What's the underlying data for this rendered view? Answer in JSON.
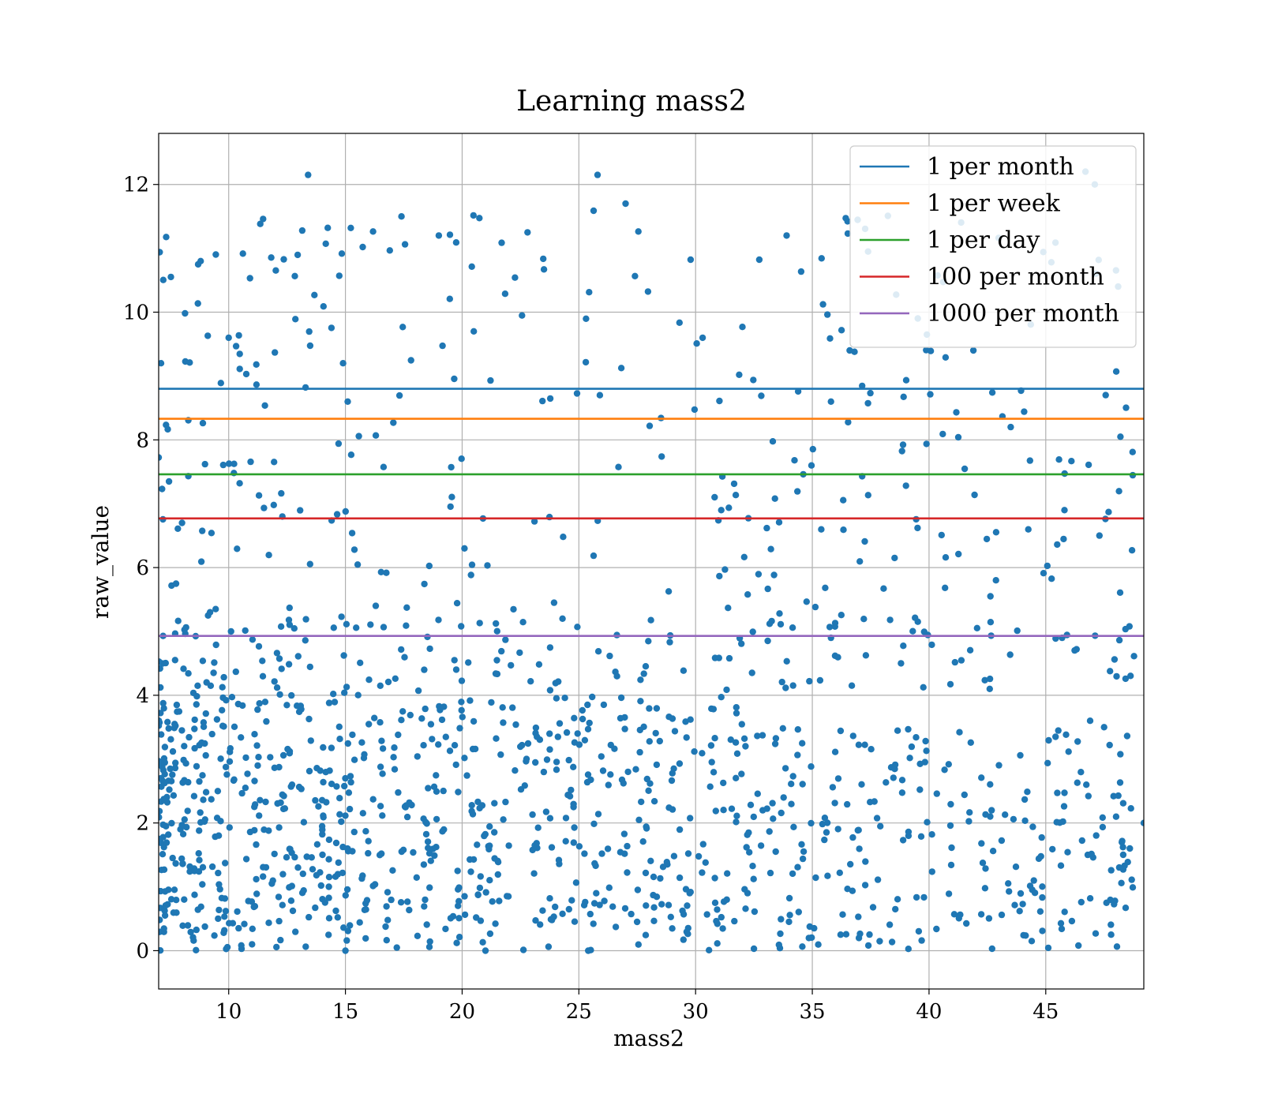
{
  "chart_data": {
    "type": "scatter",
    "title": "Learning mass2",
    "xlabel": "mass2",
    "ylabel": "raw_value",
    "xlim": [
      7.0,
      49.2
    ],
    "ylim": [
      -0.6,
      12.8
    ],
    "xticks": [
      10,
      15,
      20,
      25,
      30,
      35,
      40,
      45
    ],
    "yticks": [
      0,
      2,
      4,
      6,
      8,
      10,
      12
    ],
    "grid": true,
    "legend_position": "top-right",
    "scatter": {
      "color": "#1f77b4",
      "approx_point_count": 1500,
      "sample_points": [
        {
          "x": 7.1,
          "y": 9.2
        },
        {
          "x": 8.8,
          "y": 10.8
        },
        {
          "x": 13.4,
          "y": 12.15
        },
        {
          "x": 17.4,
          "y": 11.5
        },
        {
          "x": 19.0,
          "y": 11.2
        },
        {
          "x": 22.8,
          "y": 11.25
        },
        {
          "x": 25.8,
          "y": 12.15
        },
        {
          "x": 27.0,
          "y": 11.7
        },
        {
          "x": 33.9,
          "y": 11.2
        },
        {
          "x": 46.7,
          "y": 12.2
        },
        {
          "x": 47.1,
          "y": 12.0
        },
        {
          "x": 48.1,
          "y": 10.4
        },
        {
          "x": 10.0,
          "y": 9.6
        },
        {
          "x": 14.9,
          "y": 9.2
        },
        {
          "x": 20.5,
          "y": 9.7
        },
        {
          "x": 30.3,
          "y": 9.6
        },
        {
          "x": 36.6,
          "y": 9.4
        },
        {
          "x": 41.9,
          "y": 9.4
        },
        {
          "x": 48.2,
          "y": 8.05
        },
        {
          "x": 43.5,
          "y": 8.2
        },
        {
          "x": 35.8,
          "y": 8.6
        },
        {
          "x": 25.9,
          "y": 8.7
        },
        {
          "x": 15.1,
          "y": 8.6
        },
        {
          "x": 8.0,
          "y": 6.7
        },
        {
          "x": 12.3,
          "y": 6.8
        },
        {
          "x": 20.1,
          "y": 6.3
        },
        {
          "x": 31.1,
          "y": 6.9
        },
        {
          "x": 45.8,
          "y": 6.9
        },
        {
          "x": 47.3,
          "y": 6.5
        },
        {
          "x": 9.2,
          "y": 5.3
        },
        {
          "x": 16.3,
          "y": 5.4
        },
        {
          "x": 24.3,
          "y": 5.2
        },
        {
          "x": 35.8,
          "y": 4.9
        },
        {
          "x": 45.7,
          "y": 4.9
        },
        {
          "x": 10.1,
          "y": 5.0
        },
        {
          "x": 42.6,
          "y": 4.1
        },
        {
          "x": 38.8,
          "y": 4.5
        },
        {
          "x": 46.9,
          "y": 3.6
        },
        {
          "x": 47.5,
          "y": 3.5
        },
        {
          "x": 49.2,
          "y": 2.0
        },
        {
          "x": 48.6,
          "y": 1.6
        },
        {
          "x": 46.8,
          "y": 1.5
        },
        {
          "x": 47.6,
          "y": 0.75
        },
        {
          "x": 47.8,
          "y": 0.25
        },
        {
          "x": 46.4,
          "y": 0.08
        },
        {
          "x": 15.0,
          "y": 0.0
        },
        {
          "x": 21.0,
          "y": 0.0
        },
        {
          "x": 25.4,
          "y": 0.0
        },
        {
          "x": 32.5,
          "y": 0.03
        },
        {
          "x": 42.7,
          "y": 0.03
        },
        {
          "x": 44.4,
          "y": 0.15
        },
        {
          "x": 11.0,
          "y": 0.1
        }
      ]
    },
    "series": [
      {
        "name": "1 per month",
        "type": "hline",
        "y": 8.8,
        "color": "#1f77b4"
      },
      {
        "name": "1 per week",
        "type": "hline",
        "y": 8.33,
        "color": "#ff7f0e"
      },
      {
        "name": "1 per day",
        "type": "hline",
        "y": 7.46,
        "color": "#2ca02c"
      },
      {
        "name": "100 per month",
        "type": "hline",
        "y": 6.77,
        "color": "#d62728"
      },
      {
        "name": "1000 per month",
        "type": "hline",
        "y": 4.93,
        "color": "#9467bd"
      }
    ]
  }
}
